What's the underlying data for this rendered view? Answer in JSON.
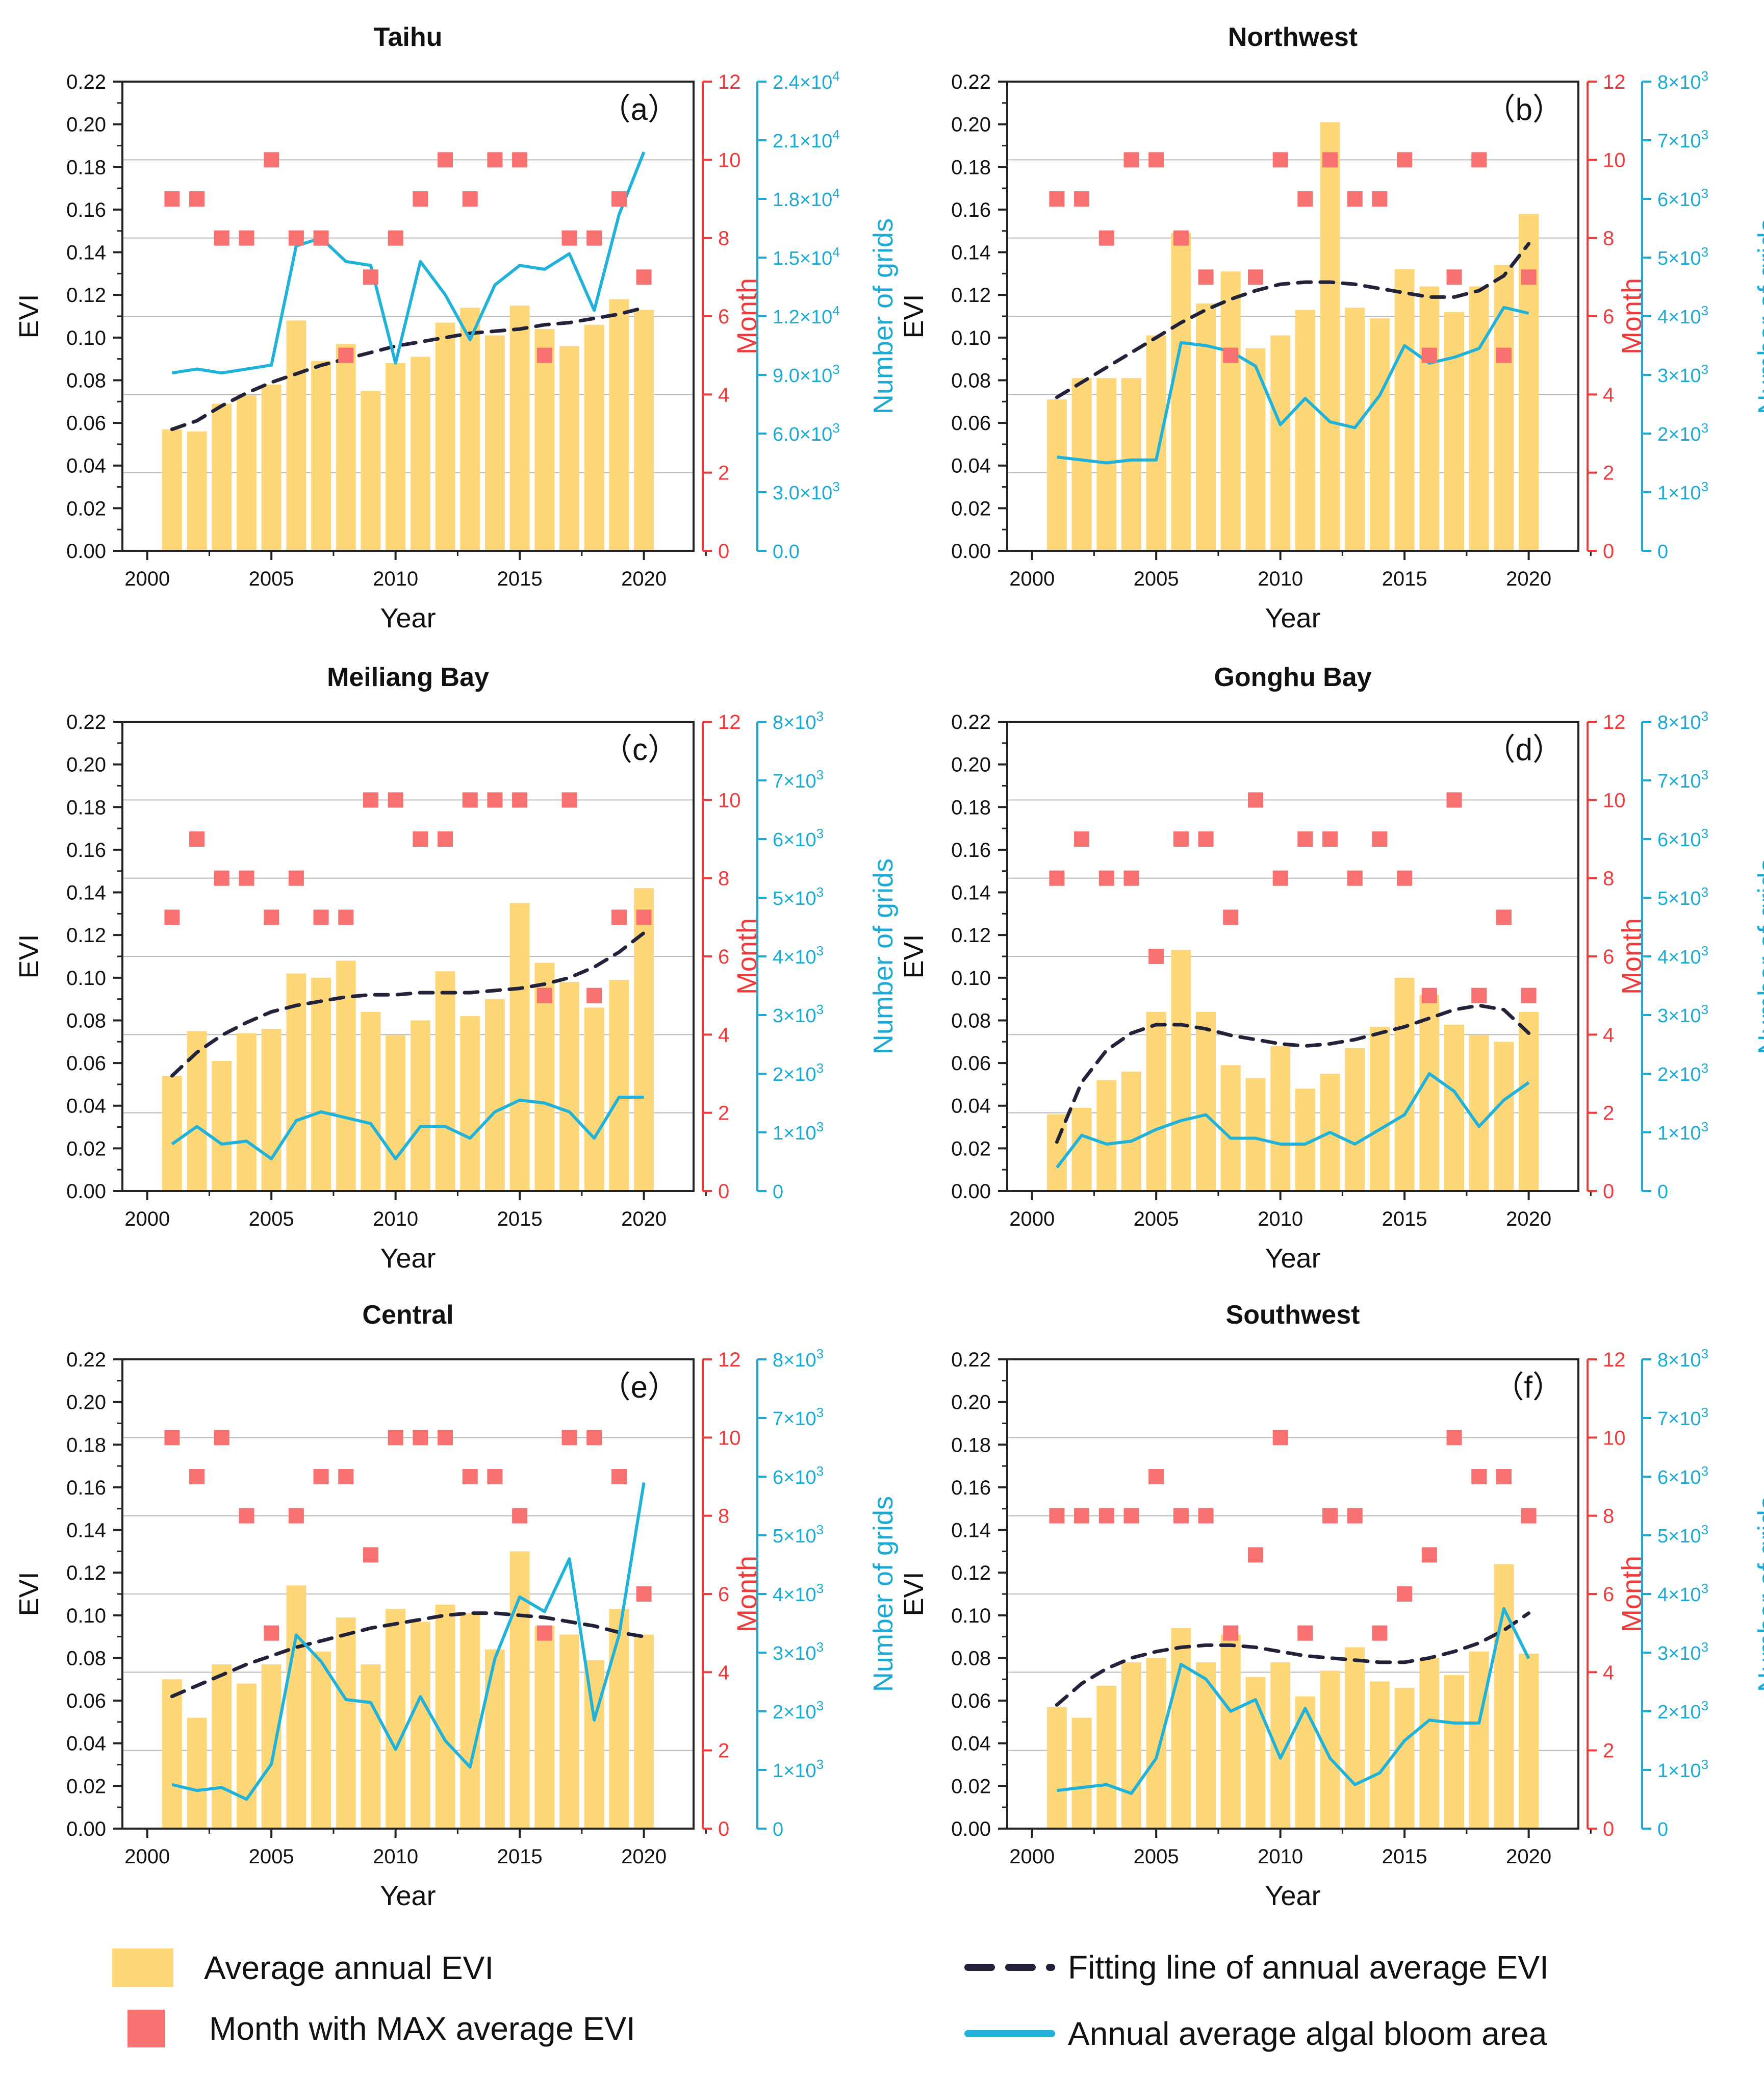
{
  "colors": {
    "bar": "#fdd778",
    "marker": "#f87171",
    "line": "#20b2d8",
    "fit": "#22223a",
    "month_axis": "#ef3b3b",
    "grid_axis": "#1aaad4",
    "text": "#111111"
  },
  "legend": {
    "bar_label": "Average annual EVI",
    "marker_label": "Month with MAX average EVI",
    "fit_label": "Fitting line of annual average EVI",
    "line_label": "Annual average algal bloom area"
  },
  "chart_data": [
    {
      "type": "bar",
      "title": "Taihu",
      "panel_label": "（a）",
      "xlabel": "Year",
      "ylabel": "EVI",
      "y2label": "Month",
      "y3label": "Number of grids",
      "xlim": [
        1999,
        2022
      ],
      "xticks": [
        "2000",
        "2005",
        "2010",
        "2015",
        "2020"
      ],
      "ylim": [
        0,
        0.22
      ],
      "yticks": [
        "0.00",
        "0.02",
        "0.04",
        "0.06",
        "0.08",
        "0.10",
        "0.12",
        "0.14",
        "0.16",
        "0.18",
        "0.20",
        "0.22"
      ],
      "y2lim": [
        0,
        12
      ],
      "y2ticks": [
        "0",
        "2",
        "4",
        "6",
        "8",
        "10",
        "12"
      ],
      "y3lim": [
        0,
        24000
      ],
      "y3ticks": [
        {
          "base": "0.0",
          "exp": ""
        },
        {
          "base": "3.0×10",
          "exp": "3"
        },
        {
          "base": "6.0×10",
          "exp": "3"
        },
        {
          "base": "9.0×10",
          "exp": "3"
        },
        {
          "base": "1.2×10",
          "exp": "4"
        },
        {
          "base": "1.5×10",
          "exp": "4"
        },
        {
          "base": "1.8×10",
          "exp": "4"
        },
        {
          "base": "2.1×10",
          "exp": "4"
        },
        {
          "base": "2.4×10",
          "exp": "4"
        }
      ],
      "years": [
        2001,
        2002,
        2003,
        2004,
        2005,
        2006,
        2007,
        2008,
        2009,
        2010,
        2011,
        2012,
        2013,
        2014,
        2015,
        2016,
        2017,
        2018,
        2019,
        2020
      ],
      "evi": [
        0.057,
        0.056,
        0.069,
        0.073,
        0.078,
        0.108,
        0.089,
        0.097,
        0.075,
        0.088,
        0.091,
        0.107,
        0.114,
        0.101,
        0.115,
        0.104,
        0.096,
        0.106,
        0.118,
        0.113
      ],
      "max_month": [
        9,
        9,
        8,
        8,
        10,
        8,
        8,
        5,
        7,
        8,
        9,
        10,
        9,
        10,
        10,
        5,
        8,
        8,
        9,
        7
      ],
      "bloom_grids": [
        9100,
        9300,
        9100,
        9300,
        9500,
        15600,
        16000,
        14800,
        14600,
        9600,
        14800,
        13100,
        10800,
        13600,
        14600,
        14400,
        15200,
        12300,
        17200,
        20400
      ],
      "fit_evi": [
        0.057,
        0.061,
        0.068,
        0.074,
        0.079,
        0.083,
        0.087,
        0.09,
        0.093,
        0.096,
        0.098,
        0.1,
        0.102,
        0.103,
        0.104,
        0.106,
        0.107,
        0.109,
        0.111,
        0.114
      ]
    },
    {
      "type": "bar",
      "title": "Northwest",
      "panel_label": "（b）",
      "xlabel": "Year",
      "ylabel": "EVI",
      "y2label": "Month",
      "y3label": "Number of grids",
      "xlim": [
        1999,
        2022
      ],
      "xticks": [
        "2000",
        "2005",
        "2010",
        "2015",
        "2020"
      ],
      "ylim": [
        0,
        0.22
      ],
      "yticks": [
        "0.00",
        "0.02",
        "0.04",
        "0.06",
        "0.08",
        "0.10",
        "0.12",
        "0.14",
        "0.16",
        "0.18",
        "0.20",
        "0.22"
      ],
      "y2lim": [
        0,
        12
      ],
      "y2ticks": [
        "0",
        "2",
        "4",
        "6",
        "8",
        "10",
        "12"
      ],
      "y3lim": [
        0,
        8000
      ],
      "y3ticks": [
        {
          "base": "0",
          "exp": ""
        },
        {
          "base": "1×10",
          "exp": "3"
        },
        {
          "base": "2×10",
          "exp": "3"
        },
        {
          "base": "3×10",
          "exp": "3"
        },
        {
          "base": "4×10",
          "exp": "3"
        },
        {
          "base": "5×10",
          "exp": "3"
        },
        {
          "base": "6×10",
          "exp": "3"
        },
        {
          "base": "7×10",
          "exp": "3"
        },
        {
          "base": "8×10",
          "exp": "3"
        }
      ],
      "years": [
        2001,
        2002,
        2003,
        2004,
        2005,
        2006,
        2007,
        2008,
        2009,
        2010,
        2011,
        2012,
        2013,
        2014,
        2015,
        2016,
        2017,
        2018,
        2019,
        2020
      ],
      "evi": [
        0.071,
        0.081,
        0.081,
        0.081,
        0.101,
        0.149,
        0.116,
        0.131,
        0.095,
        0.101,
        0.113,
        0.201,
        0.114,
        0.109,
        0.132,
        0.124,
        0.112,
        0.124,
        0.134,
        0.158
      ],
      "max_month": [
        9,
        9,
        8,
        10,
        10,
        8,
        7,
        5,
        7,
        10,
        9,
        10,
        9,
        9,
        10,
        5,
        7,
        10,
        5,
        7
      ],
      "bloom_grids": [
        1600,
        1550,
        1500,
        1550,
        1550,
        3550,
        3500,
        3400,
        3150,
        2150,
        2600,
        2200,
        2100,
        2650,
        3500,
        3200,
        3300,
        3450,
        4150,
        4050
      ],
      "fit_evi": [
        0.072,
        0.079,
        0.086,
        0.093,
        0.1,
        0.107,
        0.113,
        0.118,
        0.122,
        0.125,
        0.126,
        0.126,
        0.125,
        0.123,
        0.121,
        0.119,
        0.119,
        0.122,
        0.129,
        0.144
      ]
    },
    {
      "type": "bar",
      "title": "Meiliang Bay",
      "panel_label": "（c）",
      "xlabel": "Year",
      "ylabel": "EVI",
      "y2label": "Month",
      "y3label": "Number of grids",
      "xlim": [
        1999,
        2022
      ],
      "xticks": [
        "2000",
        "2005",
        "2010",
        "2015",
        "2020"
      ],
      "ylim": [
        0,
        0.22
      ],
      "yticks": [
        "0.00",
        "0.02",
        "0.04",
        "0.06",
        "0.08",
        "0.10",
        "0.12",
        "0.14",
        "0.16",
        "0.18",
        "0.20",
        "0.22"
      ],
      "y2lim": [
        0,
        12
      ],
      "y2ticks": [
        "0",
        "2",
        "4",
        "6",
        "8",
        "10",
        "12"
      ],
      "y3lim": [
        0,
        8000
      ],
      "y3ticks": [
        {
          "base": "0",
          "exp": ""
        },
        {
          "base": "1×10",
          "exp": "3"
        },
        {
          "base": "2×10",
          "exp": "3"
        },
        {
          "base": "3×10",
          "exp": "3"
        },
        {
          "base": "4×10",
          "exp": "3"
        },
        {
          "base": "5×10",
          "exp": "3"
        },
        {
          "base": "6×10",
          "exp": "3"
        },
        {
          "base": "7×10",
          "exp": "3"
        },
        {
          "base": "8×10",
          "exp": "3"
        }
      ],
      "years": [
        2001,
        2002,
        2003,
        2004,
        2005,
        2006,
        2007,
        2008,
        2009,
        2010,
        2011,
        2012,
        2013,
        2014,
        2015,
        2016,
        2017,
        2018,
        2019,
        2020
      ],
      "evi": [
        0.054,
        0.075,
        0.061,
        0.074,
        0.076,
        0.102,
        0.1,
        0.108,
        0.084,
        0.073,
        0.08,
        0.103,
        0.082,
        0.09,
        0.135,
        0.107,
        0.098,
        0.086,
        0.099,
        0.142
      ],
      "max_month": [
        7,
        9,
        8,
        8,
        7,
        8,
        7,
        7,
        10,
        10,
        9,
        9,
        10,
        10,
        10,
        5,
        10,
        5,
        7,
        7
      ],
      "bloom_grids": [
        800,
        1100,
        800,
        850,
        550,
        1200,
        1350,
        1250,
        1150,
        550,
        1100,
        1100,
        900,
        1350,
        1550,
        1500,
        1350,
        900,
        1600,
        1600
      ],
      "fit_evi": [
        0.054,
        0.065,
        0.073,
        0.079,
        0.084,
        0.087,
        0.089,
        0.091,
        0.092,
        0.092,
        0.093,
        0.093,
        0.093,
        0.094,
        0.095,
        0.097,
        0.1,
        0.105,
        0.112,
        0.121
      ]
    },
    {
      "type": "bar",
      "title": "Gonghu Bay",
      "panel_label": "（d）",
      "xlabel": "Year",
      "ylabel": "EVI",
      "y2label": "Month",
      "y3label": "Number of grids",
      "xlim": [
        1999,
        2022
      ],
      "xticks": [
        "2000",
        "2005",
        "2010",
        "2015",
        "2020"
      ],
      "ylim": [
        0,
        0.22
      ],
      "yticks": [
        "0.00",
        "0.02",
        "0.04",
        "0.06",
        "0.08",
        "0.10",
        "0.12",
        "0.14",
        "0.16",
        "0.18",
        "0.20",
        "0.22"
      ],
      "y2lim": [
        0,
        12
      ],
      "y2ticks": [
        "0",
        "2",
        "4",
        "6",
        "8",
        "10",
        "12"
      ],
      "y3lim": [
        0,
        8000
      ],
      "y3ticks": [
        {
          "base": "0",
          "exp": ""
        },
        {
          "base": "1×10",
          "exp": "3"
        },
        {
          "base": "2×10",
          "exp": "3"
        },
        {
          "base": "3×10",
          "exp": "3"
        },
        {
          "base": "4×10",
          "exp": "3"
        },
        {
          "base": "5×10",
          "exp": "3"
        },
        {
          "base": "6×10",
          "exp": "3"
        },
        {
          "base": "7×10",
          "exp": "3"
        },
        {
          "base": "8×10",
          "exp": "3"
        }
      ],
      "years": [
        2001,
        2002,
        2003,
        2004,
        2005,
        2006,
        2007,
        2008,
        2009,
        2010,
        2011,
        2012,
        2013,
        2014,
        2015,
        2016,
        2017,
        2018,
        2019,
        2020
      ],
      "evi": [
        0.036,
        0.039,
        0.052,
        0.056,
        0.084,
        0.113,
        0.084,
        0.059,
        0.053,
        0.068,
        0.048,
        0.055,
        0.067,
        0.077,
        0.1,
        0.092,
        0.078,
        0.073,
        0.07,
        0.084
      ],
      "max_month": [
        8,
        9,
        8,
        8,
        6,
        9,
        9,
        7,
        10,
        8,
        9,
        9,
        8,
        9,
        8,
        5,
        10,
        5,
        7,
        5
      ],
      "bloom_grids": [
        400,
        950,
        800,
        850,
        1050,
        1200,
        1300,
        900,
        900,
        800,
        800,
        1000,
        800,
        1050,
        1300,
        2000,
        1700,
        1100,
        1550,
        1850
      ],
      "fit_evi": [
        0.023,
        0.051,
        0.066,
        0.074,
        0.078,
        0.078,
        0.076,
        0.073,
        0.071,
        0.069,
        0.068,
        0.069,
        0.071,
        0.074,
        0.077,
        0.081,
        0.085,
        0.087,
        0.085,
        0.074
      ]
    },
    {
      "type": "bar",
      "title": "Central",
      "panel_label": "（e）",
      "xlabel": "Year",
      "ylabel": "EVI",
      "y2label": "Month",
      "y3label": "Number of grids",
      "xlim": [
        1999,
        2022
      ],
      "xticks": [
        "2000",
        "2005",
        "2010",
        "2015",
        "2020"
      ],
      "ylim": [
        0,
        0.22
      ],
      "yticks": [
        "0.00",
        "0.02",
        "0.04",
        "0.06",
        "0.08",
        "0.10",
        "0.12",
        "0.14",
        "0.16",
        "0.18",
        "0.20",
        "0.22"
      ],
      "y2lim": [
        0,
        12
      ],
      "y2ticks": [
        "0",
        "2",
        "4",
        "6",
        "8",
        "10",
        "12"
      ],
      "y3lim": [
        0,
        8000
      ],
      "y3ticks": [
        {
          "base": "0",
          "exp": ""
        },
        {
          "base": "1×10",
          "exp": "3"
        },
        {
          "base": "2×10",
          "exp": "3"
        },
        {
          "base": "3×10",
          "exp": "3"
        },
        {
          "base": "4×10",
          "exp": "3"
        },
        {
          "base": "5×10",
          "exp": "3"
        },
        {
          "base": "6×10",
          "exp": "3"
        },
        {
          "base": "7×10",
          "exp": "3"
        },
        {
          "base": "8×10",
          "exp": "3"
        }
      ],
      "years": [
        2001,
        2002,
        2003,
        2004,
        2005,
        2006,
        2007,
        2008,
        2009,
        2010,
        2011,
        2012,
        2013,
        2014,
        2015,
        2016,
        2017,
        2018,
        2019,
        2020
      ],
      "evi": [
        0.07,
        0.052,
        0.077,
        0.068,
        0.077,
        0.114,
        0.083,
        0.099,
        0.077,
        0.103,
        0.097,
        0.105,
        0.101,
        0.084,
        0.13,
        0.095,
        0.091,
        0.079,
        0.103,
        0.091
      ],
      "max_month": [
        10,
        9,
        10,
        8,
        5,
        8,
        9,
        9,
        7,
        10,
        10,
        10,
        9,
        9,
        8,
        5,
        10,
        10,
        9,
        6
      ],
      "bloom_grids": [
        750,
        650,
        700,
        500,
        1100,
        3300,
        2850,
        2200,
        2150,
        1350,
        2250,
        1500,
        1050,
        2900,
        3950,
        3700,
        4600,
        1850,
        3300,
        5900
      ],
      "fit_evi": [
        0.062,
        0.067,
        0.072,
        0.077,
        0.081,
        0.085,
        0.088,
        0.091,
        0.094,
        0.096,
        0.098,
        0.1,
        0.101,
        0.101,
        0.1,
        0.099,
        0.097,
        0.095,
        0.092,
        0.09
      ]
    },
    {
      "type": "bar",
      "title": "Southwest",
      "panel_label": "（f）",
      "xlabel": "Year",
      "ylabel": "EVI",
      "y2label": "Month",
      "y3label": "Number of grids",
      "xlim": [
        1999,
        2022
      ],
      "xticks": [
        "2000",
        "2005",
        "2010",
        "2015",
        "2020"
      ],
      "ylim": [
        0,
        0.22
      ],
      "yticks": [
        "0.00",
        "0.02",
        "0.04",
        "0.06",
        "0.08",
        "0.10",
        "0.12",
        "0.14",
        "0.16",
        "0.18",
        "0.20",
        "0.22"
      ],
      "y2lim": [
        0,
        12
      ],
      "y2ticks": [
        "0",
        "2",
        "4",
        "6",
        "8",
        "10",
        "12"
      ],
      "y3lim": [
        0,
        8000
      ],
      "y3ticks": [
        {
          "base": "0",
          "exp": ""
        },
        {
          "base": "1×10",
          "exp": "3"
        },
        {
          "base": "2×10",
          "exp": "3"
        },
        {
          "base": "3×10",
          "exp": "3"
        },
        {
          "base": "4×10",
          "exp": "3"
        },
        {
          "base": "5×10",
          "exp": "3"
        },
        {
          "base": "6×10",
          "exp": "3"
        },
        {
          "base": "7×10",
          "exp": "3"
        },
        {
          "base": "8×10",
          "exp": "3"
        }
      ],
      "years": [
        2001,
        2002,
        2003,
        2004,
        2005,
        2006,
        2007,
        2008,
        2009,
        2010,
        2011,
        2012,
        2013,
        2014,
        2015,
        2016,
        2017,
        2018,
        2019,
        2020
      ],
      "evi": [
        0.057,
        0.052,
        0.067,
        0.078,
        0.08,
        0.094,
        0.078,
        0.091,
        0.071,
        0.078,
        0.062,
        0.074,
        0.085,
        0.069,
        0.066,
        0.08,
        0.072,
        0.083,
        0.124,
        0.082
      ],
      "max_month": [
        8,
        8,
        8,
        8,
        9,
        8,
        8,
        5,
        7,
        10,
        5,
        8,
        8,
        5,
        6,
        7,
        10,
        9,
        9,
        8
      ],
      "bloom_grids": [
        650,
        700,
        750,
        600,
        1200,
        2800,
        2550,
        2000,
        2200,
        1200,
        2050,
        1200,
        750,
        950,
        1500,
        1850,
        1800,
        1800,
        3750,
        2900
      ],
      "fit_evi": [
        0.058,
        0.068,
        0.075,
        0.08,
        0.083,
        0.085,
        0.086,
        0.086,
        0.085,
        0.083,
        0.081,
        0.08,
        0.079,
        0.078,
        0.078,
        0.08,
        0.083,
        0.087,
        0.093,
        0.101
      ]
    }
  ]
}
